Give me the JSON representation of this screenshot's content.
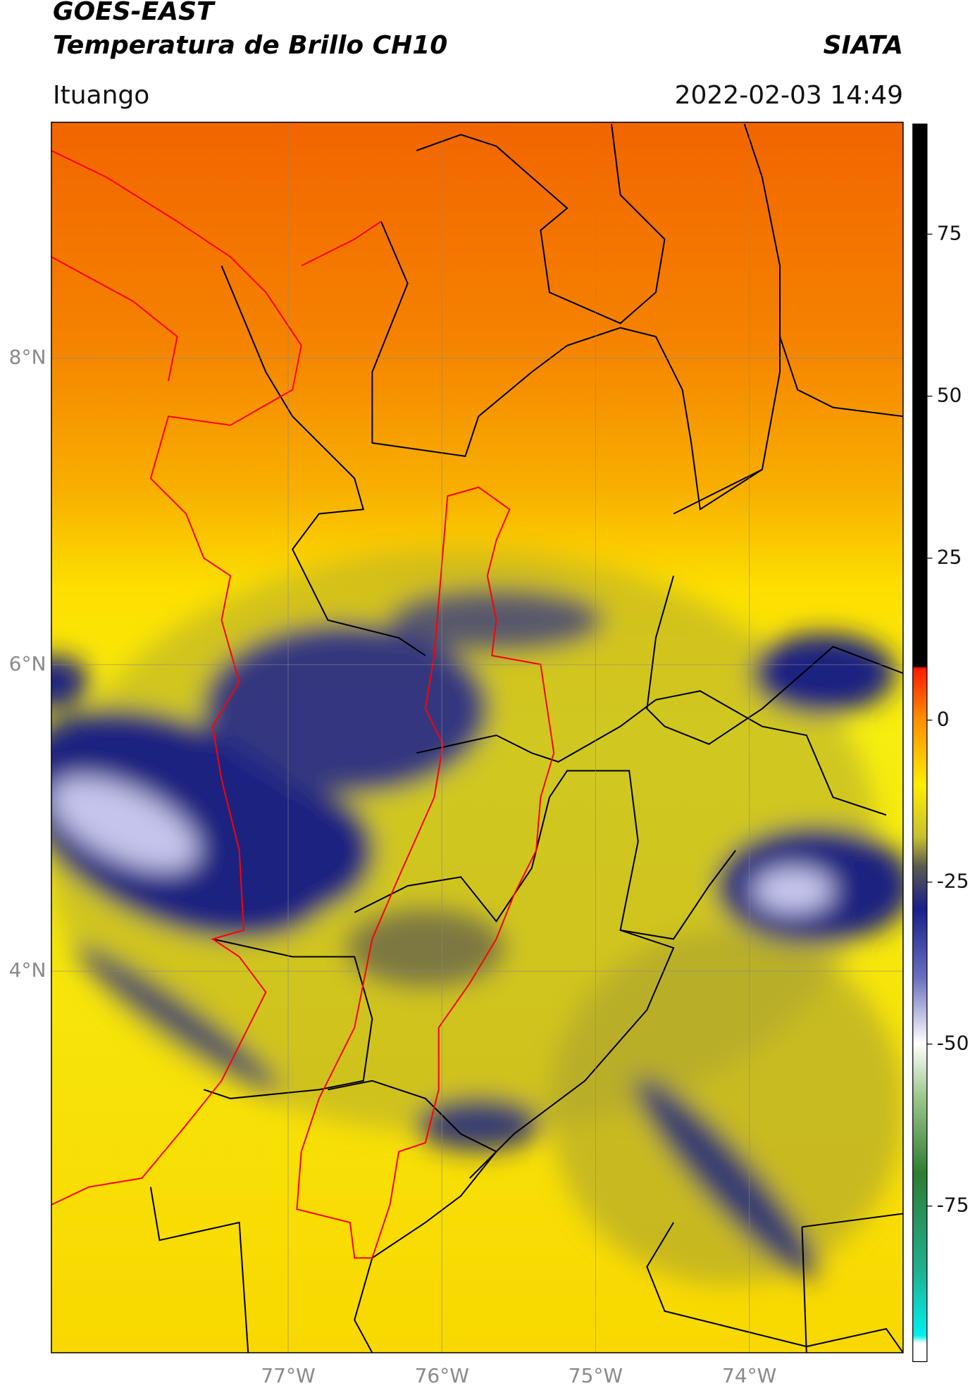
{
  "header": {
    "title": "GOES-EAST",
    "subtitle": "Temperatura de Brillo CH10",
    "brand": "SIATA",
    "location": "Ituango",
    "datetime": "2022-02-03 14:49"
  },
  "map": {
    "xlim": [
      -78.54,
      -73.0
    ],
    "ylim": [
      1.51,
      9.54
    ],
    "xticks": [
      {
        "value": -77,
        "label": "77°W"
      },
      {
        "value": -76,
        "label": "76°W"
      },
      {
        "value": -75,
        "label": "75°W"
      },
      {
        "value": -74,
        "label": "74°W"
      }
    ],
    "yticks": [
      {
        "value": 8,
        "label": "8°N"
      },
      {
        "value": 6,
        "label": "6°N"
      },
      {
        "value": 4,
        "label": "4°N"
      }
    ],
    "grid": true
  },
  "colorbar": {
    "range": [
      -99,
      92
    ],
    "ticks": [
      75,
      50,
      25,
      0,
      -25,
      -50,
      -75
    ]
  }
}
